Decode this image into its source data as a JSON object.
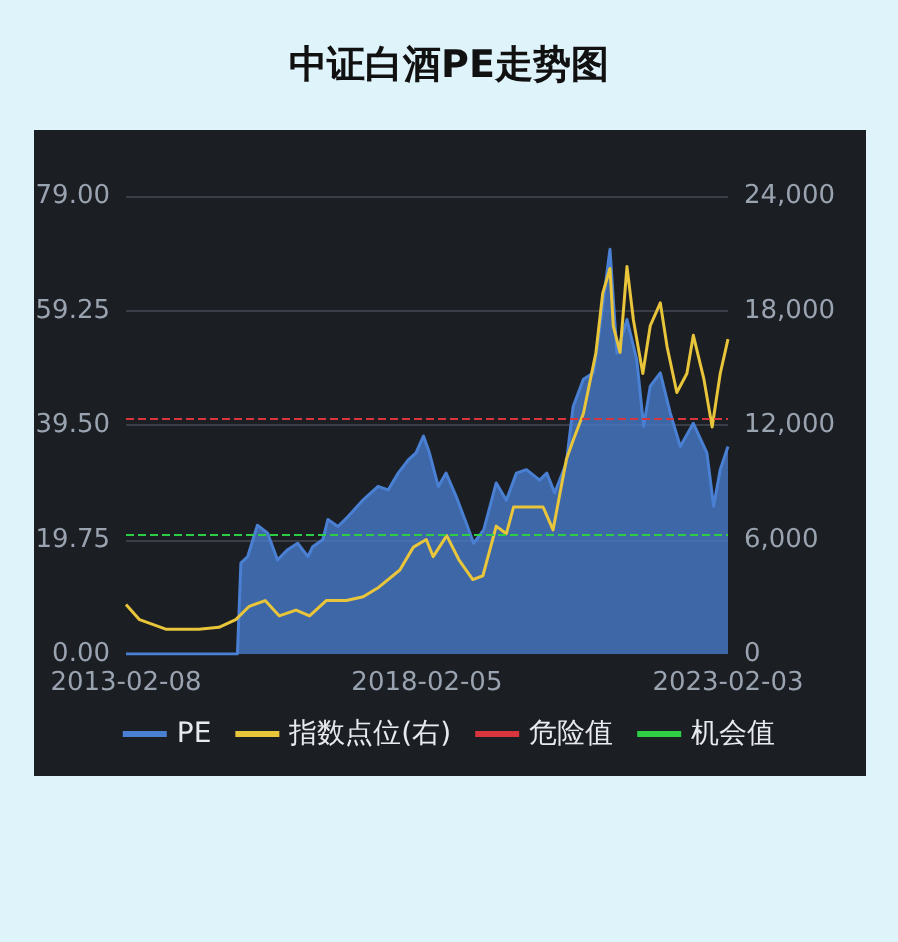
{
  "chart_data": {
    "type": "area",
    "title": "中证白酒PE走势图",
    "xlim": [
      "2013-02-08",
      "2023-02-03"
    ],
    "xticks": [
      {
        "value": "2013-02-08",
        "label": "2013-02-08"
      },
      {
        "value": "2018-02-05",
        "label": "2018-02-05"
      },
      {
        "value": "2023-02-03",
        "label": "2023-02-03"
      }
    ],
    "ylim": [
      0,
      79
    ],
    "yticks": [
      {
        "value": 0,
        "label": "0.00"
      },
      {
        "value": 19.75,
        "label": "19.75"
      },
      {
        "value": 39.5,
        "label": "39.50"
      },
      {
        "value": 59.25,
        "label": "59.25"
      },
      {
        "value": 79,
        "label": "79.00"
      }
    ],
    "y2lim": [
      0,
      24000
    ],
    "y2ticks": [
      0,
      {
        "value": 6000,
        "label": "6,000"
      },
      {
        "value": 12000,
        "label": "12,000"
      },
      {
        "value": 18000,
        "label": "18,000"
      },
      {
        "value": 24000,
        "label": "24,000"
      }
    ],
    "grid": "y",
    "legend": "bottom",
    "marker": "none",
    "line_style": "solid",
    "series": [
      {
        "name": "PE",
        "color": "#4a80d4",
        "x": [
          "2013-02-08",
          "2014-12-15",
          "2015-01-05",
          "2015-02-15",
          "2015-04-15",
          "2015-06-15",
          "2015-08-15",
          "2015-10-15",
          "2015-12-15",
          "2016-02-15",
          "2016-03-15",
          "2016-05-15",
          "2016-06-15",
          "2016-08-15",
          "2016-10-15",
          "2017-01-15",
          "2017-04-15",
          "2017-06-15",
          "2017-08-15",
          "2017-10-15",
          "2017-12-01",
          "2018-01-15",
          "2018-02-20",
          "2018-04-15",
          "2018-06-01",
          "2018-08-01",
          "2018-10-01",
          "2018-11-15",
          "2019-01-15",
          "2019-04-01",
          "2019-06-01",
          "2019-08-01",
          "2019-10-01",
          "2019-12-20",
          "2020-02-01",
          "2020-03-20",
          "2020-05-30",
          "2020-07-10",
          "2020-09-10",
          "2020-11-10",
          "2020-12-20",
          "2021-02-18",
          "2021-04-01",
          "2021-06-01",
          "2021-07-30",
          "2021-09-10",
          "2021-10-20",
          "2021-12-20",
          "2022-02-18",
          "2022-04-20",
          "2022-07-08",
          "2022-09-28",
          "2022-11-08",
          "2022-12-18",
          "2023-02-03"
        ],
        "values": [
          0,
          0,
          15.7,
          16.8,
          22.2,
          20.9,
          16.2,
          18.0,
          19.1,
          16.8,
          18.5,
          19.7,
          23.2,
          22.0,
          23.7,
          26.6,
          28.9,
          28.3,
          31.2,
          33.5,
          34.7,
          37.6,
          34.7,
          28.9,
          31.2,
          27.2,
          22.6,
          19.1,
          21.4,
          29.5,
          26.5,
          31.2,
          31.8,
          30.0,
          31.2,
          27.8,
          33.0,
          42.7,
          47.4,
          48.5,
          56.6,
          69.8,
          51.9,
          57.7,
          50.8,
          39.3,
          46.2,
          48.5,
          41.6,
          35.8,
          39.8,
          34.7,
          25.5,
          31.8,
          35.8
        ]
      },
      {
        "name": "指数点位(右)",
        "type": "line",
        "axis": "y2",
        "color": "#e8c53a",
        "x": [
          "2013-02-08",
          "2013-05-01",
          "2013-10-07",
          "2014-04-25",
          "2014-08-25",
          "2014-12-05",
          "2015-02-25",
          "2015-06-01",
          "2015-08-25",
          "2015-12-05",
          "2016-02-25",
          "2016-06-05",
          "2016-10-05",
          "2017-01-15",
          "2017-04-20",
          "2017-08-25",
          "2017-11-15",
          "2018-02-01",
          "2018-03-15",
          "2018-06-05",
          "2018-08-20",
          "2018-11-10",
          "2019-01-10",
          "2019-04-01",
          "2019-06-01",
          "2019-07-15",
          "2019-10-01",
          "2020-01-10",
          "2020-03-10",
          "2020-05-30",
          "2020-07-10",
          "2020-09-10",
          "2020-11-25",
          "2021-01-05",
          "2021-02-18",
          "2021-03-10",
          "2021-04-20",
          "2021-06-01",
          "2021-07-10",
          "2021-09-05",
          "2021-10-20",
          "2021-12-20",
          "2022-01-30",
          "2022-03-30",
          "2022-05-30",
          "2022-07-08",
          "2022-09-10",
          "2022-10-30",
          "2022-12-18",
          "2023-02-03"
        ],
        "values": [
          2600,
          1800,
          1300,
          1300,
          1400,
          1800,
          2500,
          2800,
          2000,
          2300,
          2000,
          2800,
          2800,
          3000,
          3500,
          4400,
          5600,
          6000,
          5100,
          6200,
          4900,
          3900,
          4100,
          6700,
          6300,
          7700,
          7700,
          7700,
          6500,
          10200,
          11200,
          12600,
          15800,
          18900,
          20200,
          17200,
          15800,
          20300,
          17500,
          14700,
          17200,
          18400,
          16100,
          13700,
          14700,
          16700,
          14400,
          11900,
          14700,
          16500
        ]
      }
    ],
    "ref_lines": [
      {
        "axis": "y",
        "value": 40.7,
        "label": "危险值",
        "color": "#d8363c",
        "line_style": "dashed"
      },
      {
        "axis": "y",
        "value": 20.6,
        "label": "机会值",
        "color": "#2fcf45",
        "line_style": "dashed"
      }
    ]
  }
}
